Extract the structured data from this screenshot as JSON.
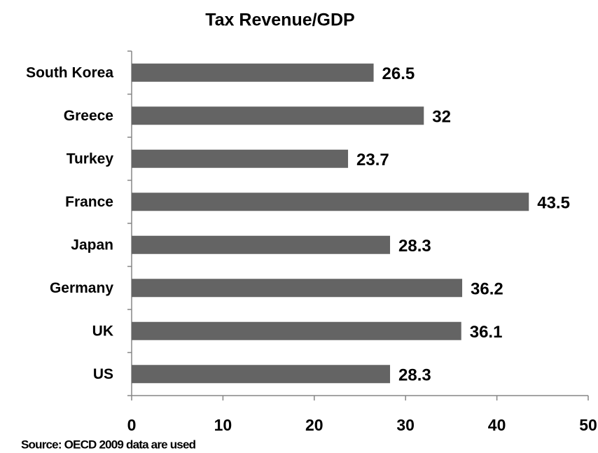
{
  "chart_data": {
    "type": "bar",
    "orientation": "horizontal",
    "title": "Tax Revenue/GDP",
    "categories": [
      "South Korea",
      "Greece",
      "Turkey",
      "France",
      "Japan",
      "Germany",
      "UK",
      "US"
    ],
    "values": [
      26.5,
      32,
      23.7,
      43.5,
      28.3,
      36.2,
      36.1,
      28.3
    ],
    "color": "#646464",
    "xlim": [
      0,
      50
    ],
    "xticks": [
      0,
      10,
      20,
      30,
      40,
      50
    ],
    "grid": false,
    "source": "Source: OECD 2009 data are used"
  }
}
